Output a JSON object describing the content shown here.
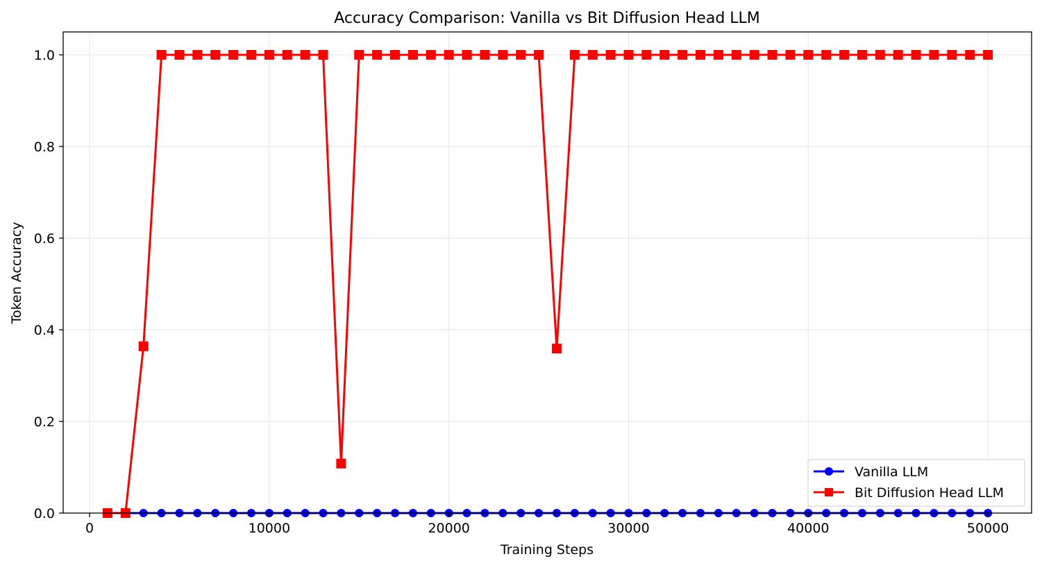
{
  "chart_data": {
    "type": "line",
    "title": "Accuracy Comparison: Vanilla vs Bit Diffusion Head LLM",
    "xlabel": "Training Steps",
    "ylabel": "Token Accuracy",
    "xlim": [
      -1470,
      52430
    ],
    "ylim": [
      0,
      1.05
    ],
    "xticks": [
      0,
      10000,
      20000,
      30000,
      40000,
      50000
    ],
    "yticks": [
      0.0,
      0.2,
      0.4,
      0.6,
      0.8,
      1.0
    ],
    "xtick_labels": [
      "0",
      "10000",
      "20000",
      "30000",
      "40000",
      "50000"
    ],
    "ytick_labels": [
      "0.0",
      "0.2",
      "0.4",
      "0.6",
      "0.8",
      "1.0"
    ],
    "grid": true,
    "legend_position": "bottom-right",
    "x": [
      1000,
      2000,
      3000,
      4000,
      5000,
      6000,
      7000,
      8000,
      9000,
      10000,
      11000,
      12000,
      13000,
      14000,
      15000,
      16000,
      17000,
      18000,
      19000,
      20000,
      21000,
      22000,
      23000,
      24000,
      25000,
      26000,
      27000,
      28000,
      29000,
      30000,
      31000,
      32000,
      33000,
      34000,
      35000,
      36000,
      37000,
      38000,
      39000,
      40000,
      41000,
      42000,
      43000,
      44000,
      45000,
      46000,
      47000,
      48000,
      49000,
      50000
    ],
    "series": [
      {
        "name": "Vanilla LLM",
        "color": "#0000ff",
        "marker": "circle",
        "values": [
          0,
          0,
          0,
          0,
          0,
          0,
          0,
          0,
          0,
          0,
          0,
          0,
          0,
          0,
          0,
          0,
          0,
          0,
          0,
          0,
          0,
          0,
          0,
          0,
          0,
          0,
          0,
          0,
          0,
          0,
          0,
          0,
          0,
          0,
          0,
          0,
          0,
          0,
          0,
          0,
          0,
          0,
          0,
          0,
          0,
          0,
          0,
          0,
          0,
          0
        ]
      },
      {
        "name": "Bit Diffusion Head LLM",
        "color": "#ff0000",
        "marker": "square",
        "values": [
          0,
          0,
          0.364,
          1,
          1,
          1,
          1,
          1,
          1,
          1,
          1,
          1,
          1,
          0.108,
          1,
          1,
          1,
          1,
          1,
          1,
          1,
          1,
          1,
          1,
          1,
          0.359,
          1,
          1,
          1,
          1,
          1,
          1,
          1,
          1,
          1,
          1,
          1,
          1,
          1,
          1,
          1,
          1,
          1,
          1,
          1,
          1,
          1,
          1,
          1,
          1
        ]
      }
    ]
  }
}
